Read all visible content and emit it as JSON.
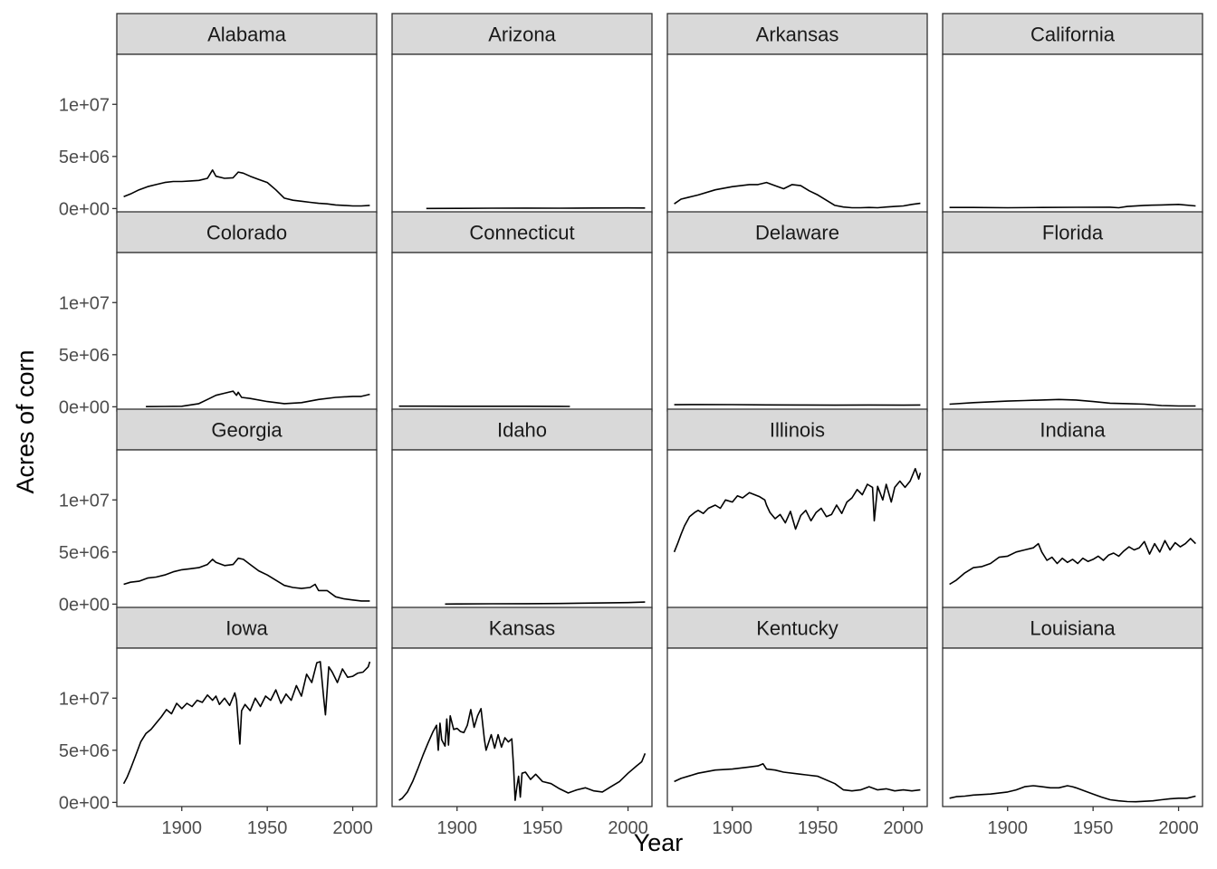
{
  "chart_data": {
    "type": "line",
    "facet_layout": "wrap 4 columns x 4 rows",
    "xlabel": "Year",
    "ylabel": "Acres of corn",
    "xlim": [
      1862,
      2014
    ],
    "ylim": [
      -400000,
      14800000
    ],
    "x_ticks": [
      1900,
      1950,
      2000
    ],
    "x_tick_labels": [
      "1900",
      "1950",
      "2000"
    ],
    "y_ticks": [
      0,
      5000000,
      10000000
    ],
    "y_tick_labels": [
      "0e+00",
      "5e+06",
      "1e+07"
    ],
    "grid": false,
    "facets": [
      {
        "name": "Alabama",
        "x": [
          1866,
          1870,
          1875,
          1880,
          1885,
          1890,
          1895,
          1900,
          1905,
          1910,
          1915,
          1918,
          1920,
          1925,
          1930,
          1933,
          1936,
          1940,
          1945,
          1950,
          1955,
          1960,
          1965,
          1970,
          1975,
          1980,
          1985,
          1990,
          1995,
          2000,
          2005,
          2010
        ],
        "y": [
          1150000,
          1400000,
          1800000,
          2100000,
          2300000,
          2500000,
          2600000,
          2600000,
          2650000,
          2700000,
          2900000,
          3700000,
          3100000,
          2900000,
          2950000,
          3500000,
          3400000,
          3100000,
          2800000,
          2500000,
          1800000,
          1000000,
          800000,
          700000,
          600000,
          500000,
          450000,
          350000,
          300000,
          250000,
          250000,
          300000
        ]
      },
      {
        "name": "Arizona",
        "x": [
          1882,
          1900,
          1920,
          1940,
          1960,
          1980,
          2000,
          2010
        ],
        "y": [
          5000,
          15000,
          30000,
          40000,
          30000,
          50000,
          60000,
          50000
        ]
      },
      {
        "name": "Arkansas",
        "x": [
          1866,
          1870,
          1875,
          1880,
          1890,
          1900,
          1910,
          1915,
          1920,
          1925,
          1930,
          1935,
          1940,
          1945,
          1950,
          1955,
          1960,
          1965,
          1970,
          1975,
          1980,
          1985,
          1990,
          1995,
          2000,
          2005,
          2010
        ],
        "y": [
          450000,
          900000,
          1100000,
          1300000,
          1800000,
          2100000,
          2300000,
          2300000,
          2500000,
          2200000,
          1900000,
          2300000,
          2200000,
          1700000,
          1300000,
          800000,
          300000,
          150000,
          80000,
          80000,
          100000,
          80000,
          150000,
          200000,
          250000,
          400000,
          500000
        ]
      },
      {
        "name": "California",
        "x": [
          1866,
          1880,
          1900,
          1920,
          1940,
          1960,
          1965,
          1970,
          1980,
          1990,
          2000,
          2010
        ],
        "y": [
          100000,
          100000,
          80000,
          100000,
          120000,
          130000,
          80000,
          200000,
          300000,
          350000,
          400000,
          250000
        ]
      },
      {
        "name": "Colorado",
        "x": [
          1879,
          1890,
          1900,
          1910,
          1915,
          1920,
          1925,
          1930,
          1932,
          1933,
          1935,
          1940,
          1950,
          1960,
          1970,
          1980,
          1990,
          2000,
          2005,
          2010
        ],
        "y": [
          20000,
          30000,
          50000,
          300000,
          700000,
          1100000,
          1300000,
          1500000,
          1100000,
          1400000,
          900000,
          800000,
          500000,
          300000,
          400000,
          700000,
          900000,
          1000000,
          1000000,
          1200000
        ]
      },
      {
        "name": "Connecticut",
        "x": [
          1866,
          1880,
          1900,
          1920,
          1940,
          1960,
          1966
        ],
        "y": [
          60000,
          60000,
          50000,
          55000,
          50000,
          40000,
          35000
        ]
      },
      {
        "name": "Delaware",
        "x": [
          1866,
          1880,
          1900,
          1920,
          1940,
          1960,
          1980,
          2000,
          2010
        ],
        "y": [
          200000,
          220000,
          210000,
          180000,
          170000,
          160000,
          170000,
          160000,
          170000
        ]
      },
      {
        "name": "Florida",
        "x": [
          1866,
          1880,
          1900,
          1910,
          1920,
          1930,
          1940,
          1950,
          1960,
          1970,
          1980,
          1990,
          2000,
          2010
        ],
        "y": [
          250000,
          400000,
          550000,
          600000,
          650000,
          700000,
          650000,
          500000,
          350000,
          300000,
          250000,
          120000,
          80000,
          80000
        ]
      },
      {
        "name": "Georgia",
        "x": [
          1866,
          1870,
          1875,
          1880,
          1885,
          1890,
          1895,
          1900,
          1905,
          1910,
          1915,
          1918,
          1920,
          1925,
          1930,
          1933,
          1936,
          1940,
          1945,
          1950,
          1955,
          1960,
          1965,
          1970,
          1975,
          1978,
          1980,
          1985,
          1990,
          1995,
          2000,
          2005,
          2010
        ],
        "y": [
          1900000,
          2100000,
          2200000,
          2500000,
          2600000,
          2800000,
          3100000,
          3300000,
          3400000,
          3500000,
          3800000,
          4300000,
          4000000,
          3700000,
          3800000,
          4400000,
          4300000,
          3800000,
          3200000,
          2800000,
          2300000,
          1800000,
          1600000,
          1500000,
          1600000,
          1900000,
          1300000,
          1300000,
          700000,
          500000,
          400000,
          300000,
          300000
        ]
      },
      {
        "name": "Idaho",
        "x": [
          1893,
          1900,
          1920,
          1940,
          1960,
          1980,
          2000,
          2010
        ],
        "y": [
          10000,
          15000,
          30000,
          40000,
          60000,
          100000,
          150000,
          200000
        ]
      },
      {
        "name": "Illinois",
        "x": [
          1866,
          1868,
          1870,
          1872,
          1875,
          1878,
          1880,
          1883,
          1886,
          1890,
          1893,
          1896,
          1900,
          1903,
          1906,
          1910,
          1913,
          1916,
          1919,
          1920,
          1922,
          1925,
          1928,
          1931,
          1934,
          1937,
          1940,
          1943,
          1946,
          1949,
          1952,
          1955,
          1958,
          1961,
          1964,
          1967,
          1970,
          1973,
          1976,
          1979,
          1982,
          1983,
          1985,
          1988,
          1990,
          1993,
          1995,
          1998,
          2001,
          2004,
          2007,
          2009,
          2010
        ],
        "y": [
          5000000,
          5800000,
          6700000,
          7500000,
          8400000,
          8800000,
          9000000,
          8700000,
          9200000,
          9500000,
          9200000,
          10000000,
          9800000,
          10400000,
          10200000,
          10700000,
          10500000,
          10300000,
          10000000,
          9500000,
          8800000,
          8200000,
          8600000,
          7800000,
          8900000,
          7200000,
          8500000,
          9000000,
          8000000,
          8800000,
          9200000,
          8400000,
          8600000,
          9500000,
          8700000,
          9800000,
          10200000,
          11000000,
          10500000,
          11500000,
          11200000,
          8000000,
          11300000,
          10000000,
          11500000,
          9800000,
          11200000,
          11800000,
          11200000,
          11800000,
          13000000,
          12000000,
          12600000
        ]
      },
      {
        "name": "Indiana",
        "x": [
          1866,
          1870,
          1875,
          1880,
          1885,
          1890,
          1895,
          1900,
          1905,
          1910,
          1915,
          1918,
          1920,
          1923,
          1926,
          1929,
          1932,
          1935,
          1938,
          1941,
          1944,
          1947,
          1950,
          1953,
          1956,
          1959,
          1962,
          1965,
          1968,
          1971,
          1974,
          1977,
          1980,
          1983,
          1986,
          1989,
          1992,
          1995,
          1998,
          2001,
          2004,
          2007,
          2010
        ],
        "y": [
          1900000,
          2300000,
          3000000,
          3500000,
          3600000,
          3900000,
          4500000,
          4600000,
          5000000,
          5200000,
          5400000,
          5800000,
          5000000,
          4200000,
          4500000,
          3900000,
          4400000,
          4000000,
          4300000,
          3900000,
          4400000,
          4100000,
          4300000,
          4600000,
          4200000,
          4700000,
          4900000,
          4600000,
          5100000,
          5500000,
          5200000,
          5400000,
          6000000,
          4800000,
          5800000,
          5000000,
          6100000,
          5200000,
          5900000,
          5500000,
          5800000,
          6300000,
          5800000
        ]
      },
      {
        "name": "Iowa",
        "x": [
          1866,
          1868,
          1870,
          1873,
          1876,
          1879,
          1882,
          1885,
          1888,
          1891,
          1894,
          1897,
          1900,
          1903,
          1906,
          1909,
          1912,
          1915,
          1918,
          1920,
          1922,
          1925,
          1928,
          1931,
          1932,
          1934,
          1935,
          1937,
          1940,
          1943,
          1946,
          1949,
          1952,
          1955,
          1958,
          1961,
          1964,
          1967,
          1970,
          1973,
          1976,
          1979,
          1981,
          1983,
          1984,
          1986,
          1988,
          1991,
          1994,
          1997,
          2000,
          2003,
          2006,
          2009,
          2010
        ],
        "y": [
          1800000,
          2400000,
          3200000,
          4500000,
          5800000,
          6600000,
          7000000,
          7600000,
          8200000,
          8900000,
          8500000,
          9500000,
          9000000,
          9500000,
          9200000,
          9800000,
          9600000,
          10300000,
          9800000,
          10200000,
          9400000,
          10000000,
          9300000,
          10500000,
          9800000,
          5600000,
          8800000,
          9400000,
          8800000,
          10000000,
          9200000,
          10200000,
          9800000,
          10800000,
          9500000,
          10400000,
          9800000,
          11200000,
          10200000,
          12300000,
          11500000,
          13400000,
          13500000,
          10000000,
          8400000,
          13000000,
          12500000,
          11500000,
          12800000,
          12000000,
          12100000,
          12400000,
          12500000,
          13000000,
          13500000
        ]
      },
      {
        "name": "Kansas",
        "x": [
          1866,
          1868,
          1871,
          1874,
          1877,
          1880,
          1883,
          1886,
          1888,
          1889,
          1890,
          1891,
          1893,
          1894,
          1895,
          1896,
          1898,
          1900,
          1902,
          1904,
          1906,
          1908,
          1910,
          1912,
          1914,
          1916,
          1917,
          1918,
          1920,
          1922,
          1924,
          1926,
          1928,
          1930,
          1932,
          1933,
          1934,
          1935,
          1936,
          1937,
          1938,
          1940,
          1943,
          1946,
          1950,
          1955,
          1960,
          1965,
          1970,
          1975,
          1980,
          1985,
          1990,
          1995,
          2000,
          2005,
          2008,
          2010
        ],
        "y": [
          200000,
          400000,
          1000000,
          2000000,
          3200000,
          4500000,
          5700000,
          6800000,
          7400000,
          5000000,
          7600000,
          6000000,
          5400000,
          8000000,
          5500000,
          8300000,
          7000000,
          7100000,
          6800000,
          6700000,
          7400000,
          8900000,
          7200000,
          8300000,
          9000000,
          6000000,
          5000000,
          5500000,
          6500000,
          5200000,
          6500000,
          5300000,
          6200000,
          5800000,
          6100000,
          3500000,
          200000,
          1500000,
          2500000,
          500000,
          2800000,
          2900000,
          2200000,
          2700000,
          2000000,
          1800000,
          1300000,
          900000,
          1200000,
          1400000,
          1100000,
          1000000,
          1500000,
          2000000,
          2800000,
          3500000,
          3900000,
          4700000
        ]
      },
      {
        "name": "Kentucky",
        "x": [
          1866,
          1870,
          1880,
          1890,
          1900,
          1910,
          1915,
          1918,
          1920,
          1925,
          1930,
          1940,
          1950,
          1960,
          1965,
          1970,
          1975,
          1980,
          1985,
          1990,
          1995,
          2000,
          2005,
          2010
        ],
        "y": [
          2000000,
          2300000,
          2800000,
          3100000,
          3200000,
          3400000,
          3500000,
          3700000,
          3200000,
          3100000,
          2900000,
          2700000,
          2500000,
          1800000,
          1200000,
          1100000,
          1200000,
          1500000,
          1200000,
          1300000,
          1100000,
          1200000,
          1100000,
          1200000
        ]
      },
      {
        "name": "Louisiana",
        "x": [
          1866,
          1870,
          1875,
          1880,
          1890,
          1900,
          1905,
          1910,
          1915,
          1920,
          1925,
          1930,
          1935,
          1938,
          1940,
          1945,
          1950,
          1955,
          1960,
          1965,
          1970,
          1975,
          1980,
          1985,
          1990,
          1995,
          2000,
          2005,
          2010
        ],
        "y": [
          400000,
          550000,
          600000,
          700000,
          800000,
          1000000,
          1200000,
          1500000,
          1600000,
          1500000,
          1400000,
          1400000,
          1600000,
          1500000,
          1400000,
          1100000,
          800000,
          500000,
          250000,
          150000,
          80000,
          60000,
          100000,
          150000,
          250000,
          350000,
          400000,
          400000,
          600000
        ]
      }
    ]
  }
}
